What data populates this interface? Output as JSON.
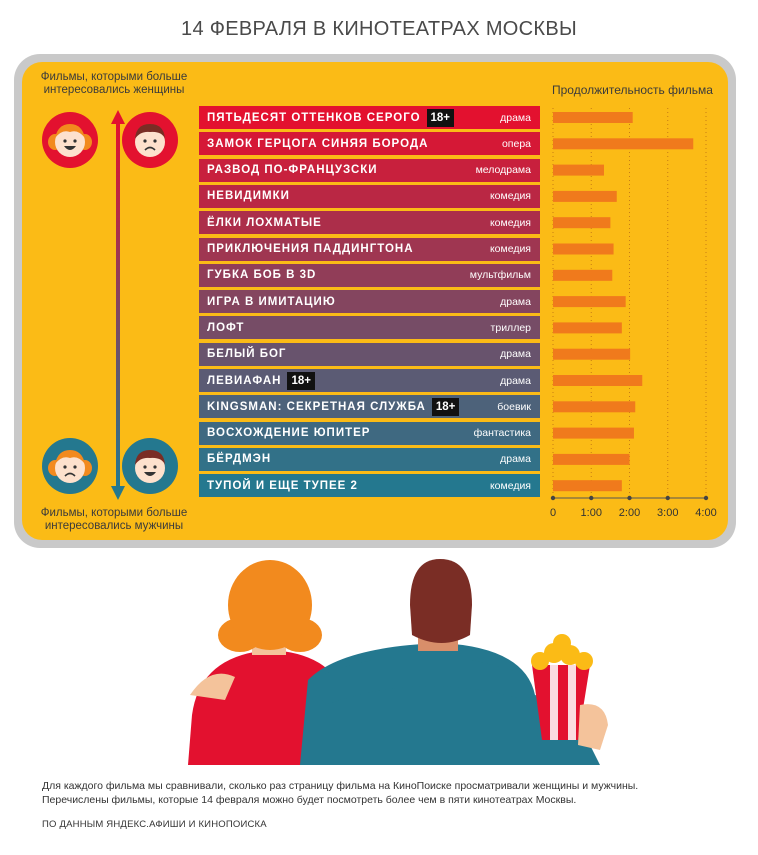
{
  "title": "14 ФЕВРАЛЯ В КИНОТЕАТРАХ МОСКВЫ",
  "labels": {
    "women_line1": "Фильмы, которыми больше",
    "women_line2": "интересовались женщины",
    "men_line1": "Фильмы, которыми больше",
    "men_line2": "интересовались мужчины",
    "duration": "Продолжительность фильма"
  },
  "colors": {
    "background": "#fbbb16",
    "bar": "#f07a1c",
    "women_end": "#e3112f",
    "men_end": "#24788f"
  },
  "chart_data": {
    "type": "bar",
    "orientation": "horizontal",
    "ylabel": "Продолжительность фильма",
    "x_ticks": [
      "0",
      "1:00",
      "2:00",
      "3:00",
      "4:00"
    ],
    "xlim_minutes": [
      0,
      240
    ],
    "units": "minutes",
    "categories": [
      "ПЯТЬДЕСЯТ ОТТЕНКОВ СЕРОГО",
      "ЗАМОК ГЕРЦОГА СИНЯЯ БОРОДА",
      "РАЗВОД ПО-ФРАНЦУЗСКИ",
      "НЕВИДИМКИ",
      "ЁЛКИ ЛОХМАТЫЕ",
      "ПРИКЛЮЧЕНИЯ ПАДДИНГТОНА",
      "ГУБКА БОБ В 3D",
      "ИГРА В ИМИТАЦИЮ",
      "ЛОФТ",
      "БЕЛЫЙ БОГ",
      "ЛЕВИАФАН",
      "KINGSMAN: СЕКРЕТНАЯ СЛУЖБА",
      "ВОСХОЖДЕНИЕ ЮПИТЕР",
      "БЁРДМЭН",
      "ТУПОЙ И ЕЩЕ ТУПЕЕ 2"
    ],
    "genres": [
      "драма",
      "опера",
      "мелодрама",
      "комедия",
      "комедия",
      "комедия",
      "мультфильм",
      "драма",
      "триллер",
      "драма",
      "драма",
      "боевик",
      "фантастика",
      "драма",
      "комедия"
    ],
    "age_ratings": [
      "18+",
      "",
      "",
      "",
      "",
      "",
      "",
      "",
      "",
      "",
      "18+",
      "18+",
      "",
      "",
      ""
    ],
    "values": [
      125,
      220,
      80,
      100,
      90,
      95,
      93,
      114,
      108,
      121,
      140,
      129,
      127,
      120,
      108
    ]
  },
  "footnote": {
    "line1": "Для каждого фильма мы сравнивали, сколько раз страницу фильма на КиноПоиске просматривали женщины и мужчины.",
    "line2": "Перечислены фильмы, которые 14 февраля можно будет посмотреть более чем в пяти кинотеатрах Москвы."
  },
  "source": "ПО ДАННЫМ ЯНДЕКС.АФИШИ И КИНОПОИСКА"
}
